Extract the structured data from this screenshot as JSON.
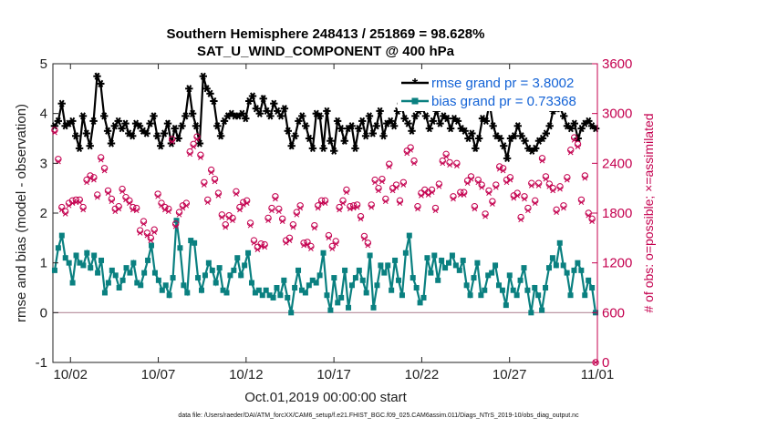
{
  "chart_data": {
    "type": "line",
    "title": "Southern Hemisphere 248413 / 251869 = 98.628%",
    "subtitle": "SAT_U_WIND_COMPONENT @ 400 hPa",
    "xlabel": "Oct.01,2019 00:00:00 start",
    "ylabel": "rmse and bias (model - observation)",
    "y2label": "# of obs: o=possible; ×=assimilated",
    "xlim": [
      1,
      32
    ],
    "ylim": [
      -1,
      5
    ],
    "y2lim": [
      0,
      3600
    ],
    "x_ticks": [
      {
        "x": 2,
        "label": "10/02"
      },
      {
        "x": 7,
        "label": "10/07"
      },
      {
        "x": 12,
        "label": "10/12"
      },
      {
        "x": 17,
        "label": "10/17"
      },
      {
        "x": 22,
        "label": "10/22"
      },
      {
        "x": 27,
        "label": "10/27"
      },
      {
        "x": 32,
        "label": "11/01"
      }
    ],
    "y_ticks": [
      "-1",
      "0",
      "1",
      "2",
      "3",
      "4",
      "5"
    ],
    "y2_ticks": [
      "0",
      "600",
      "1200",
      "1800",
      "2400",
      "3000",
      "3600"
    ],
    "legend": [
      {
        "label": "rmse grand pr = 3.8002",
        "color": "#000000"
      },
      {
        "label": "bias grand pr = 0.73368",
        "color": "#0a8080"
      }
    ],
    "series": [
      {
        "name": "rmse",
        "color": "#000000",
        "values": [
          3.75,
          3.85,
          4.2,
          3.75,
          3.8,
          3.85,
          3.55,
          3.3,
          3.95,
          3.6,
          3.35,
          3.85,
          4.75,
          4.6,
          3.95,
          3.65,
          3.4,
          3.75,
          3.85,
          3.7,
          3.8,
          3.6,
          3.55,
          3.8,
          3.75,
          3.65,
          3.6,
          3.8,
          3.95,
          3.55,
          3.35,
          3.6,
          3.8,
          3.4,
          3.7,
          3.5,
          3.75,
          3.95,
          4.5,
          4.0,
          3.75,
          3.4,
          4.75,
          4.5,
          4.4,
          4.25,
          3.75,
          3.55,
          3.85,
          3.95,
          4.0,
          3.95,
          3.95,
          4.0,
          3.9,
          4.25,
          4.35,
          4.1,
          4.0,
          4.3,
          4.05,
          3.95,
          4.2,
          4.05,
          3.95,
          4.1,
          3.65,
          3.35,
          3.55,
          3.85,
          3.95,
          3.75,
          3.5,
          3.3,
          4.0,
          3.95,
          3.3,
          4.05,
          3.45,
          3.25,
          3.85,
          3.7,
          3.45,
          3.7,
          3.75,
          3.3,
          3.7,
          3.85,
          3.55,
          3.95,
          3.6,
          3.75,
          4.05,
          3.55,
          3.8,
          3.85,
          3.75,
          4.05,
          4.2,
          3.9,
          3.8,
          3.65,
          3.95,
          4.05,
          4.1,
          3.95,
          3.7,
          3.85,
          4.05,
          3.8,
          3.95,
          3.9,
          3.7,
          3.9,
          3.85,
          3.7,
          3.65,
          3.5,
          3.6,
          3.3,
          3.5,
          3.9,
          3.85,
          4.2,
          3.75,
          3.55,
          3.5,
          3.35,
          3.1,
          3.5,
          3.55,
          3.75,
          3.55,
          3.45,
          3.3,
          3.25,
          3.3,
          3.45,
          3.5,
          3.6,
          3.75,
          4.05,
          4.1,
          4.1,
          3.95,
          3.75,
          3.7,
          3.8,
          3.5,
          3.7,
          3.8,
          3.85,
          3.75,
          3.7
        ]
      },
      {
        "name": "bias",
        "color": "#0a8080",
        "values": [
          0.85,
          1.3,
          1.55,
          1.1,
          1.0,
          0.6,
          1.15,
          1.0,
          0.95,
          1.2,
          0.9,
          1.15,
          0.8,
          1.05,
          0.4,
          0.6,
          0.85,
          0.75,
          0.5,
          0.65,
          0.9,
          0.8,
          1.0,
          0.6,
          0.55,
          0.8,
          1.05,
          1.35,
          0.8,
          0.65,
          0.45,
          0.55,
          0.35,
          0.7,
          1.85,
          1.3,
          0.55,
          0.4,
          1.45,
          1.4,
          0.7,
          0.45,
          0.75,
          1.0,
          0.85,
          0.6,
          0.9,
          0.45,
          0.4,
          0.75,
          0.85,
          1.1,
          0.75,
          0.95,
          1.2,
          0.6,
          0.4,
          0.45,
          0.35,
          0.45,
          0.35,
          0.3,
          0.5,
          0.35,
          0.65,
          0.3,
          0.0,
          0.5,
          0.85,
          0.45,
          0.4,
          0.55,
          0.65,
          0.6,
          0.75,
          1.2,
          0.35,
          0.05,
          0.7,
          0.2,
          0.3,
          0.85,
          0.1,
          0.55,
          0.7,
          0.85,
          0.65,
          0.4,
          1.15,
          0.1,
          0.55,
          0.95,
          0.8,
          0.95,
          0.45,
          1.05,
          0.65,
          0.35,
          1.2,
          1.55,
          0.7,
          0.5,
          0.2,
          0.3,
          1.1,
          0.8,
          1.15,
          0.65,
          1.05,
          0.9,
          1.0,
          1.15,
          0.95,
          0.85,
          1.05,
          0.55,
          0.35,
          0.7,
          1.0,
          0.35,
          0.45,
          0.75,
          0.8,
          0.95,
          0.55,
          0.45,
          0.15,
          0.75,
          0.45,
          0.35,
          0.65,
          0.9,
          0.45,
          0.0,
          0.5,
          0.35,
          0.05,
          0.5,
          0.9,
          1.1,
          0.95,
          1.4,
          0.95,
          0.8,
          0.35,
          0.85,
          1.0,
          0.85,
          0.35,
          0.65,
          0.5,
          0.0
        ]
      },
      {
        "name": "obs possible",
        "axis": "right",
        "color": "#c4004f",
        "marker": "o",
        "values": [
          2800,
          2450,
          1870,
          1820,
          1920,
          1950,
          1960,
          1960,
          1870,
          2200,
          2250,
          2230,
          2020,
          2470,
          2340,
          2070,
          1970,
          1850,
          1880,
          2090,
          1990,
          1950,
          1870,
          1860,
          1590,
          1700,
          1560,
          1500,
          1600,
          2030,
          1920,
          1870,
          1850,
          2690,
          1670,
          1810,
          1890,
          1920,
          2540,
          2630,
          2720,
          2500,
          2170,
          1960,
          2320,
          2210,
          2040,
          1780,
          1660,
          1770,
          1740,
          2060,
          1870,
          1930,
          1950,
          1680,
          1470,
          1390,
          1430,
          1420,
          1740,
          1860,
          2000,
          1850,
          1730,
          1470,
          1500,
          1660,
          1810,
          1890,
          1440,
          1450,
          1400,
          1650,
          1890,
          1950,
          1950,
          1530,
          1400,
          1460,
          1870,
          1950,
          2080,
          1880,
          1890,
          1900,
          1760,
          1520,
          1440,
          1900,
          2200,
          2100,
          2210,
          1970,
          2390,
          2100,
          2140,
          1950,
          2170,
          2550,
          2590,
          2430,
          1880,
          2040,
          2080,
          2050,
          2080,
          1860,
          2150,
          2430,
          2510,
          2410,
          2000,
          2400,
          2050,
          2050,
          2190,
          2240,
          1880,
          2200,
          2140,
          1790,
          2070,
          1940,
          2140,
          2360,
          2340,
          2200,
          2230,
          2010,
          2040,
          1750,
          2000,
          1860,
          2160,
          1950,
          2160,
          2460,
          2240,
          2150,
          2100,
          1840,
          2120,
          1890,
          2230,
          2560,
          2710,
          2630,
          1960,
          2250,
          1800,
          1730,
          0
        ]
      },
      {
        "name": "obs assimilated",
        "axis": "right",
        "color": "#c4004f",
        "marker": "x",
        "values": [
          2770,
          2420,
          1840,
          1790,
          1890,
          1920,
          1930,
          1930,
          1840,
          2170,
          2220,
          2200,
          1990,
          2440,
          2310,
          2040,
          1940,
          1820,
          1850,
          2060,
          1960,
          1920,
          1840,
          1830,
          1560,
          1670,
          1530,
          1470,
          1570,
          2000,
          1890,
          1840,
          1820,
          2660,
          1640,
          1780,
          1860,
          1890,
          2510,
          2600,
          2690,
          2470,
          2140,
          1930,
          2290,
          2180,
          2010,
          1750,
          1630,
          1740,
          1710,
          2030,
          1840,
          1900,
          1920,
          1650,
          1440,
          1360,
          1400,
          1390,
          1710,
          1830,
          1970,
          1820,
          1700,
          1440,
          1470,
          1630,
          1780,
          1860,
          1410,
          1420,
          1370,
          1620,
          1860,
          1920,
          1920,
          1500,
          1370,
          1430,
          1840,
          1920,
          2050,
          1850,
          1860,
          1870,
          1730,
          1490,
          1410,
          1870,
          2170,
          2070,
          2180,
          1940,
          2360,
          2070,
          2110,
          1920,
          2140,
          2520,
          2560,
          2400,
          1850,
          2010,
          2050,
          2020,
          2050,
          1830,
          2120,
          2400,
          2480,
          2380,
          1970,
          2370,
          2020,
          2020,
          2160,
          2210,
          1850,
          2170,
          2110,
          1760,
          2040,
          1910,
          2110,
          2330,
          2310,
          2170,
          2200,
          1980,
          2010,
          1720,
          1970,
          1830,
          2130,
          1920,
          2130,
          2430,
          2210,
          2120,
          2070,
          1810,
          2090,
          1860,
          2200,
          2530,
          2680,
          2600,
          1930,
          2220,
          1770,
          1700,
          0
        ]
      }
    ]
  },
  "footer": "data file: /Users/raeder/DAI/ATM_forcXX/CAM6_setup/f.e21.FHIST_BGC.f09_025.CAM6assim.011/Diags_NTrS_2019-10/obs_diag_output.nc"
}
